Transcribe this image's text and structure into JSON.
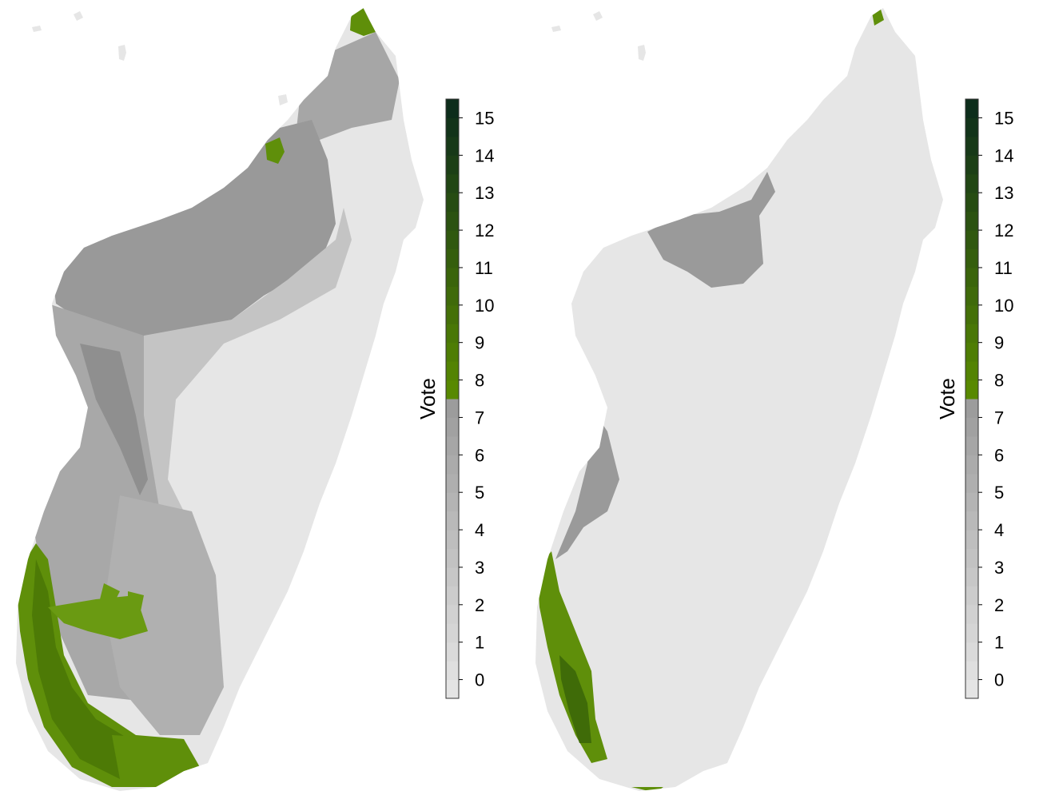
{
  "figure": {
    "panels": [
      {
        "id": "left",
        "legend": {
          "title": "Vote",
          "ticks": [
            "0",
            "1",
            "2",
            "3",
            "4",
            "5",
            "6",
            "7",
            "8",
            "9",
            "10",
            "11",
            "12",
            "13",
            "14",
            "15"
          ],
          "min": -0.5,
          "max": 15.5,
          "bands": 32
        }
      },
      {
        "id": "right",
        "legend": {
          "title": "Vote",
          "ticks": [
            "0",
            "1",
            "2",
            "3",
            "4",
            "5",
            "6",
            "7",
            "8",
            "9",
            "10",
            "11",
            "12",
            "13",
            "14",
            "15"
          ],
          "min": -0.5,
          "max": 15.5,
          "bands": 32
        }
      }
    ]
  },
  "colors": {
    "background": "#ffffff",
    "low_gray": "#e6e6e6",
    "mid_gray": "#9a9a9a",
    "threshold_green": "#5a8c00",
    "high_green": "#0b2a1c",
    "legend_outline": "#333333",
    "text": "#000000"
  }
}
